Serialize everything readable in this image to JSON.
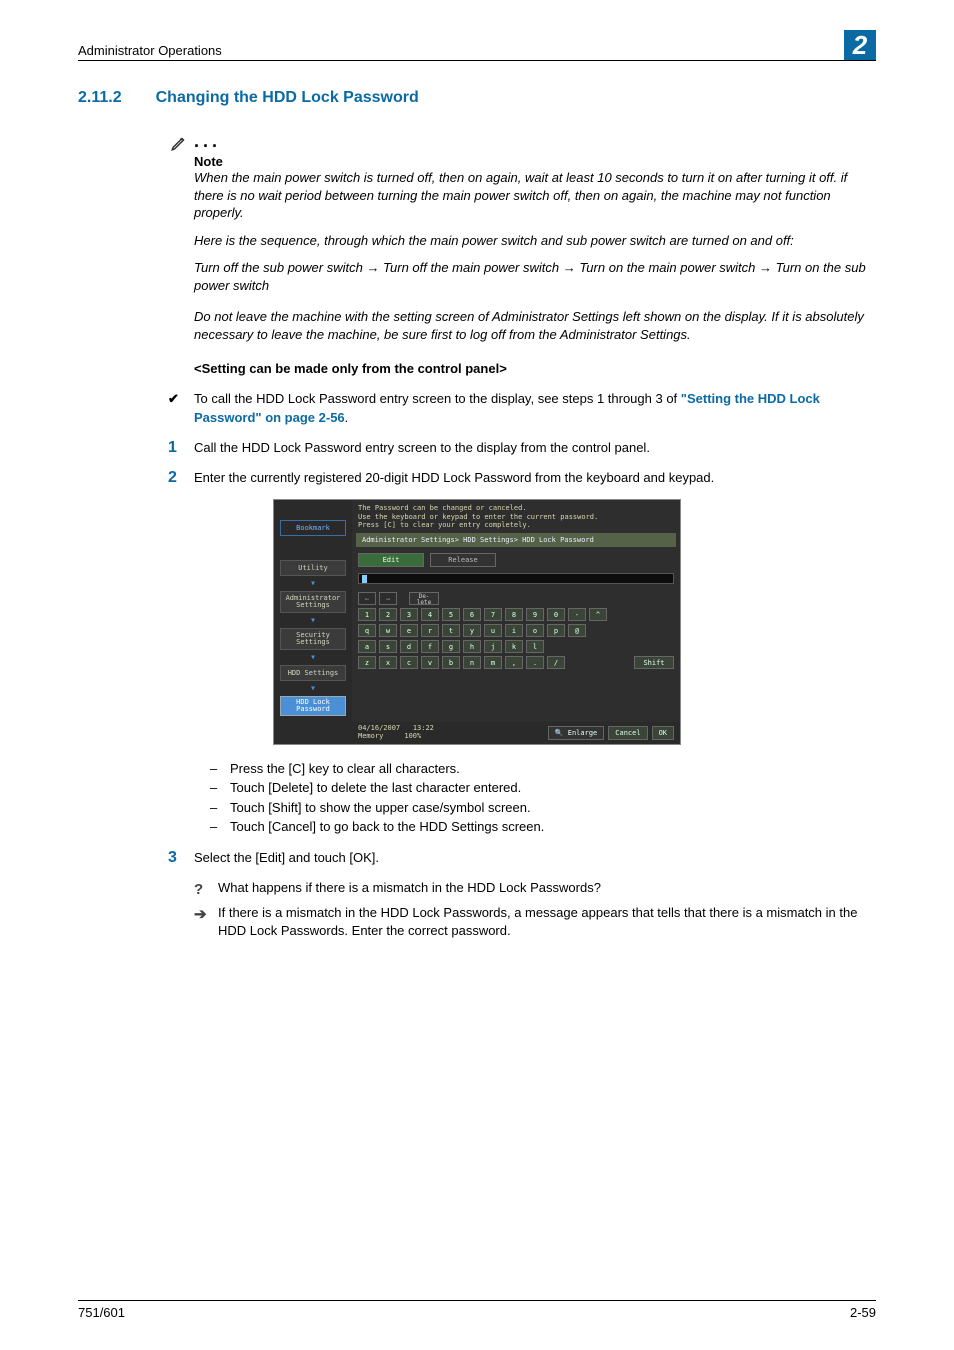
{
  "colors": {
    "accent": "#0b6aa3",
    "text": "#000000",
    "background": "#ffffff",
    "panel_bg": "#2e2e2e",
    "panel_green": "#3a4538",
    "panel_blue": "#4b90d6"
  },
  "header": {
    "title": "Administrator Operations",
    "chapter": "2"
  },
  "section": {
    "number": "2.11.2",
    "title": "Changing the HDD Lock Password"
  },
  "note": {
    "label": "Note",
    "p1": "When the main power switch is turned off, then on again, wait at least 10 seconds to turn it on after turning it off. if there is no wait period between turning the main power switch off, then on again, the machine may not function properly.",
    "p2": "Here is the sequence, through which the main power switch and sub power switch are turned on and off:",
    "p3": "Turn off the sub power switch → Turn off the main power switch → Turn on the main power switch → Turn on the sub power switch",
    "p4": "Do not leave the machine with the setting screen of Administrator Settings left shown on the display. If it is absolutely necessary to leave the machine, be sure first to log off from the Administrator Settings."
  },
  "subheading": "<Setting can be made only from the control panel>",
  "check": {
    "text_before": "To call the HDD Lock Password entry screen to the display, see steps 1 through 3 of ",
    "link": "\"Setting the HDD Lock Password\" on page 2-56",
    "text_after": "."
  },
  "steps": {
    "s1": {
      "num": "1",
      "text": "Call the HDD Lock Password entry screen to the display from the control panel."
    },
    "s2": {
      "num": "2",
      "text": "Enter the currently registered 20-digit HDD Lock Password from the keyboard and keypad."
    },
    "s2_sub": {
      "a": "Press the [C] key to clear all characters.",
      "b": "Touch [Delete] to delete the last character entered.",
      "c": "Touch [Shift] to show the upper case/symbol screen.",
      "d": "Touch [Cancel] to go back to the HDD Settings screen."
    },
    "s3": {
      "num": "3",
      "text": "Select the [Edit] and touch [OK]."
    },
    "s3_q": "What happens if there is a mismatch in the HDD Lock Passwords?",
    "s3_a": "If there is a mismatch in the HDD Lock Passwords, a message appears that tells that there is a mismatch in the HDD Lock Passwords. Enter the correct password."
  },
  "footer": {
    "left": "751/601",
    "right": "2-59"
  },
  "screenshot": {
    "msg_l1": "The Password can be changed or canceled.",
    "msg_l2": "Use the keyboard or keypad to enter the current password.",
    "msg_l3": "Press [C] to clear your entry completely.",
    "crumb": "Administrator Settings> HDD Settings> HDD Lock Password",
    "bookmark": "Bookmark",
    "nav": {
      "utility": "Utility",
      "admin": "Administrator Settings",
      "security": "Security Settings",
      "hdd": "HDD Settings",
      "lock": "HDD Lock Password"
    },
    "tabs": {
      "edit": "Edit",
      "release": "Release"
    },
    "keys": {
      "del": "De-\nlete",
      "row1": [
        "1",
        "2",
        "3",
        "4",
        "5",
        "6",
        "7",
        "8",
        "9",
        "0",
        "-",
        "^"
      ],
      "row2": [
        "q",
        "w",
        "e",
        "r",
        "t",
        "y",
        "u",
        "i",
        "o",
        "p",
        "@"
      ],
      "row3": [
        "a",
        "s",
        "d",
        "f",
        "g",
        "h",
        "j",
        "k",
        "l"
      ],
      "row4": [
        "z",
        "x",
        "c",
        "v",
        "b",
        "n",
        "m",
        ",",
        ".",
        "/"
      ],
      "shift": "Shift"
    },
    "footer": {
      "date": "04/16/2007",
      "time": "13:22",
      "mem_label": "Memory",
      "mem_val": "100%",
      "enlarge": "Enlarge",
      "cancel": "Cancel",
      "ok": "OK"
    }
  }
}
